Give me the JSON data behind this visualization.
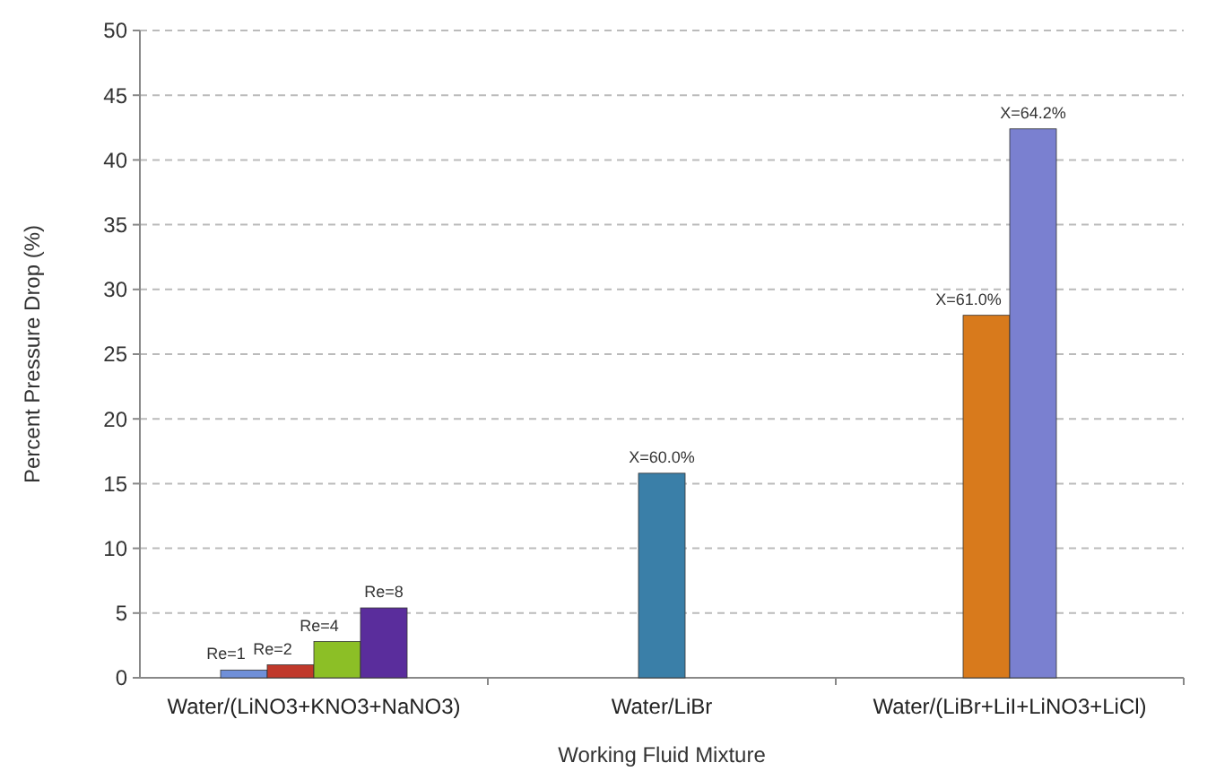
{
  "chart_data": {
    "type": "bar",
    "xlabel": "Working Fluid Mixture",
    "ylabel": "Percent Pressure Drop (%)",
    "categories": [
      "Water/(LiNO3+KNO3+NaNO3)",
      "Water/LiBr",
      "Water/(LiBr+LiI+LiNO3+LiCl)"
    ],
    "series": [
      {
        "name": "Re=1",
        "color": "#6f8fd8",
        "values": [
          0.6,
          null,
          null
        ]
      },
      {
        "name": "Re=2",
        "color": "#c0392b",
        "values": [
          1.0,
          null,
          null
        ]
      },
      {
        "name": "Re=4",
        "color": "#8cbf26",
        "values": [
          2.8,
          null,
          null
        ]
      },
      {
        "name": "Re=8",
        "color": "#5a2d9c",
        "values": [
          5.4,
          null,
          null
        ]
      },
      {
        "name": "X=60.0%",
        "color": "#3a7fa8",
        "values": [
          null,
          15.8,
          null
        ]
      },
      {
        "name": "X=61.0%",
        "color": "#d87a1c",
        "values": [
          null,
          null,
          28
        ]
      },
      {
        "name": "X=64.2%",
        "color": "#7a80d0",
        "values": [
          null,
          null,
          42.4
        ]
      }
    ],
    "ylim": [
      0,
      50
    ],
    "yticks": [
      0,
      5,
      10,
      15,
      20,
      25,
      30,
      35,
      40,
      45,
      50
    ],
    "grid": "y"
  }
}
